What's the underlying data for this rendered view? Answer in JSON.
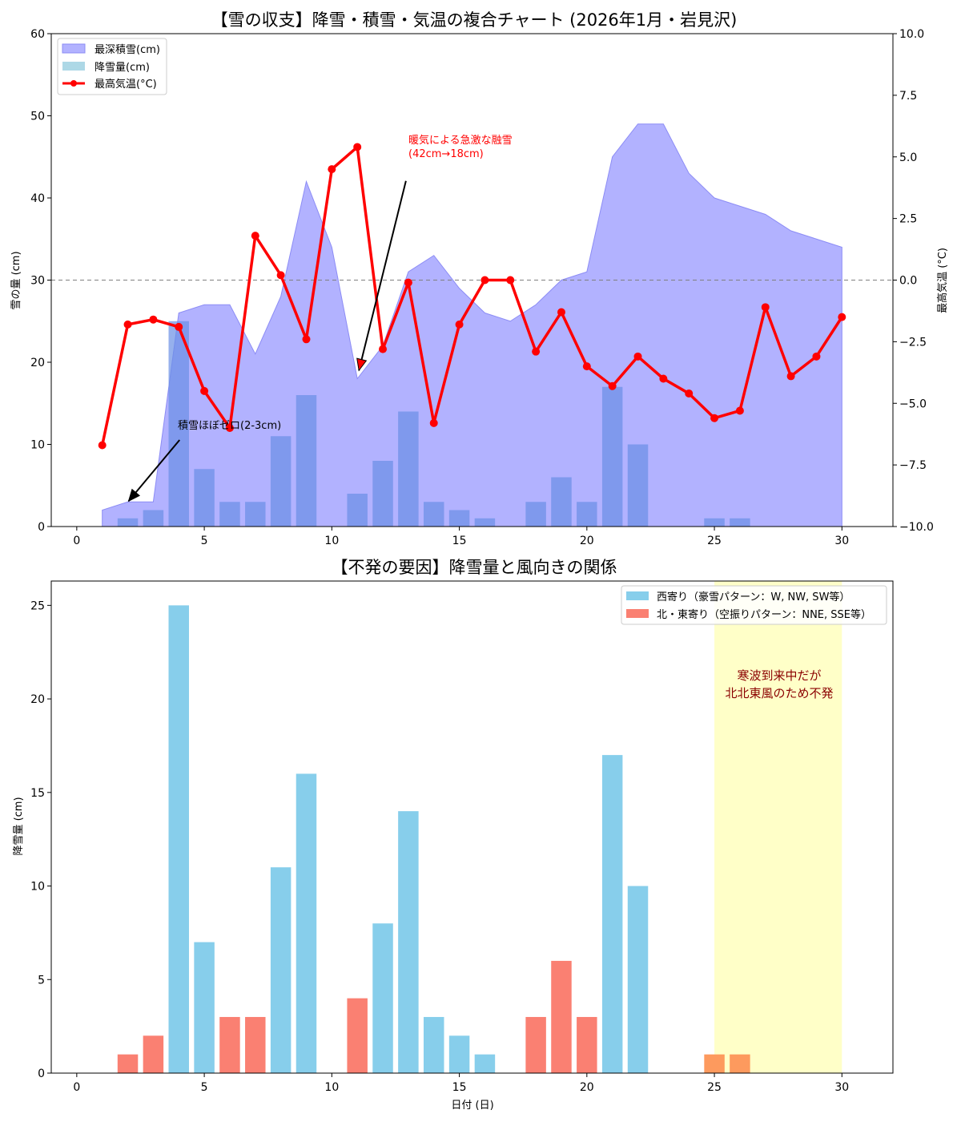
{
  "colors": {
    "snow_depth_fill": "#b2b2ff",
    "snow_depth_edge": "#8c8cf5",
    "snowfall_bar": "#6a8fe6",
    "temp_line": "#ff0000",
    "west_bar": "#87ceeb",
    "east_bar": "#fa8072",
    "highlight_fill": "#ffffc8",
    "highlight_text": "#8b0000",
    "zero_line": "#808080"
  },
  "chart_data": [
    {
      "type": "combo",
      "title": "【雪の収支】降雪・積雪・気温の複合チャート (2026年1月・岩見沢)",
      "ylabel_left": "雪の量 (cm)",
      "ylabel_right": "最高気温 (°C)",
      "xlim": [
        -1,
        32
      ],
      "ylim_left": [
        0,
        60
      ],
      "ylim_right": [
        -10,
        10
      ],
      "x_ticks": [
        0,
        5,
        10,
        15,
        20,
        25,
        30
      ],
      "y_ticks_left": [
        0,
        10,
        20,
        30,
        40,
        50,
        60
      ],
      "y_ticks_right": [
        "-10.0",
        "-7.5",
        "-5.0",
        "-2.5",
        "0.0",
        "2.5",
        "5.0",
        "7.5",
        "10.0"
      ],
      "legend": [
        "最深積雪(cm)",
        "降雪量(cm)",
        "最高気温(°C)"
      ],
      "days": [
        1,
        2,
        3,
        4,
        5,
        6,
        7,
        8,
        9,
        10,
        11,
        12,
        13,
        14,
        15,
        16,
        17,
        18,
        19,
        20,
        21,
        22,
        23,
        24,
        25,
        26,
        27,
        28,
        29,
        30
      ],
      "snow_depth": [
        2,
        3,
        3,
        26,
        27,
        27,
        21,
        28,
        42,
        34,
        18,
        22,
        31,
        33,
        29,
        26,
        25,
        27,
        30,
        31,
        45,
        49,
        49,
        43,
        40,
        39,
        38,
        36,
        35,
        34
      ],
      "snowfall": [
        0,
        1,
        2,
        25,
        7,
        3,
        3,
        11,
        16,
        0,
        4,
        8,
        14,
        3,
        2,
        1,
        0,
        3,
        6,
        3,
        17,
        10,
        0,
        0,
        1,
        1,
        0,
        0,
        0,
        0
      ],
      "max_temp": [
        -6.7,
        -1.8,
        -1.6,
        -1.9,
        -4.5,
        -6.0,
        1.8,
        0.2,
        -2.4,
        4.5,
        5.4,
        -2.8,
        -0.1,
        -5.8,
        -1.8,
        0.0,
        0.0,
        -2.9,
        -1.3,
        -3.5,
        -4.3,
        -3.1,
        -4.0,
        -4.6,
        -5.6,
        -5.3,
        -1.1,
        -3.9,
        -3.1,
        -1.5
      ],
      "annotations": [
        {
          "text_line1": "暖気による急激な融雪",
          "text_line2": "(42cm→18cm)",
          "xy": [
            11,
            19
          ],
          "xytext": [
            13,
            45
          ]
        },
        {
          "text": "積雪ほぼゼロ(2-3cm)",
          "xy": [
            2,
            3
          ],
          "xytext": [
            4,
            12
          ]
        }
      ]
    },
    {
      "type": "bar",
      "title": "【不発の要因】降雪量と風向きの関係",
      "xlabel": "日付 (日)",
      "ylabel": "降雪量 (cm)",
      "xlim": [
        -1,
        32
      ],
      "ylim": [
        0,
        26.3
      ],
      "x_ticks": [
        0,
        5,
        10,
        15,
        20,
        25,
        30
      ],
      "y_ticks": [
        0,
        5,
        10,
        15,
        20,
        25
      ],
      "legend": [
        "西寄り（豪雪パターン：W, NW, SW等）",
        "北・東寄り（空振りパターン：NNE, SSE等）"
      ],
      "days": [
        2,
        3,
        4,
        5,
        6,
        7,
        8,
        9,
        11,
        12,
        13,
        14,
        15,
        16,
        18,
        19,
        20,
        21,
        22,
        25,
        26
      ],
      "values": [
        1,
        2,
        25,
        7,
        3,
        3,
        11,
        16,
        4,
        8,
        14,
        3,
        2,
        1,
        3,
        6,
        3,
        17,
        10,
        1,
        1
      ],
      "wind": [
        "E",
        "E",
        "W",
        "W",
        "E",
        "E",
        "W",
        "W",
        "E",
        "W",
        "W",
        "W",
        "W",
        "W",
        "E",
        "E",
        "E",
        "W",
        "W",
        "E",
        "E"
      ],
      "highlight_range": [
        25,
        30
      ],
      "highlight_text_line1": "寒波到来中だが",
      "highlight_text_line2": "北北東風のため不発"
    }
  ]
}
